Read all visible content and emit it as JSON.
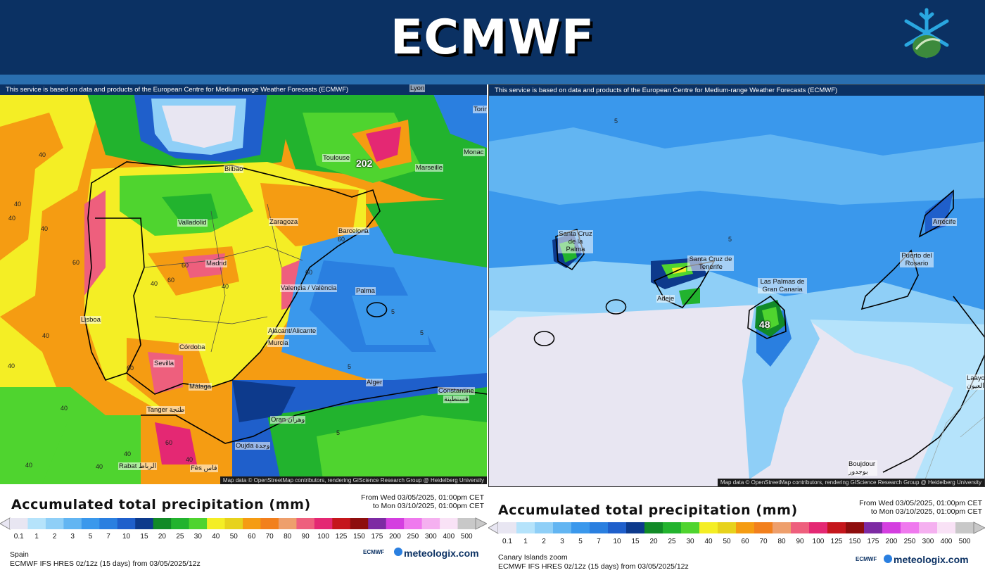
{
  "header": {
    "title": "ECMWF"
  },
  "disclaimer": "This service is based on data and products of the European Centre for Medium-range Weather Forecasts (ECMWF)",
  "attribution": "Map data © OpenStreetMap contributors, rendering GIScience Research Group @ Heidelberg University",
  "legend": {
    "title": "Accumulated total precipitation (mm)",
    "from": "From Wed 03/05/2025, 01:00pm CET",
    "to": "to Mon 03/10/2025, 01:00pm CET",
    "model": "ECMWF IFS HRES 0z/12z (15 days) from 03/05/2025/12z",
    "brand": "meteologix.com",
    "brand_small": "ECMWF",
    "scale_values": [
      "0.1",
      "1",
      "2",
      "3",
      "5",
      "7",
      "10",
      "15",
      "20",
      "25",
      "30",
      "40",
      "50",
      "60",
      "70",
      "80",
      "90",
      "100",
      "125",
      "150",
      "175",
      "200",
      "250",
      "300",
      "400",
      "500"
    ],
    "scale_colors": [
      "#e8e6f2",
      "#b5e3fb",
      "#8fcff7",
      "#62b5f2",
      "#3a98ec",
      "#2a7fe0",
      "#1f5fcb",
      "#0d3a8c",
      "#118a27",
      "#22b32e",
      "#4fd42f",
      "#f4ee25",
      "#e7d21c",
      "#f59c12",
      "#f2801d",
      "#ee9f6c",
      "#ee5f7d",
      "#e42873",
      "#c5161c",
      "#8e0e0e",
      "#7d2aa3",
      "#d43ee0",
      "#ef79ee",
      "#f5b0f0",
      "#f9e2f6",
      "#c8c8c8"
    ]
  },
  "left": {
    "region": "Spain",
    "max_value": "202",
    "cities": [
      "Lyon",
      "Torin",
      "Toulouse",
      "Marseille",
      "Monac",
      "Bilbao",
      "Valladolid",
      "Zaragoza",
      "Barcelona",
      "Madrid",
      "Palma",
      "Valencia / València",
      "Lisboa",
      "Alacant/Alicante",
      "Murcia",
      "Córdoba",
      "Sevilla",
      "Málaga",
      "Alger",
      "Constantine",
      "قسنطينة",
      "Oran وهران",
      "Tanger طنجة",
      "Oujda وجدة",
      "Rabat الرباط",
      "Fès فاس"
    ],
    "contour_labels": [
      "40",
      "40",
      "40",
      "40",
      "60",
      "60",
      "60",
      "40",
      "60",
      "40",
      "60",
      "40",
      "40",
      "60",
      "5",
      "5",
      "5",
      "5",
      "40",
      "40",
      "60",
      "40",
      "40",
      "40"
    ]
  },
  "right": {
    "region": "Canary Islands zoom",
    "max_value": "48",
    "cities": [
      "Santa Cruz de la Palma",
      "Santa Cruz de Tenerife",
      "Las Palmas de Gran Canaria",
      "Adeje",
      "Arrecife",
      "Puerto del Rosario",
      "Laayou العيون",
      "Boujdour بوجدور"
    ],
    "contour_labels": [
      "5",
      "5"
    ]
  },
  "colors": {
    "header_bg": "#0b3163",
    "header_strip": "#2a6fb0"
  }
}
